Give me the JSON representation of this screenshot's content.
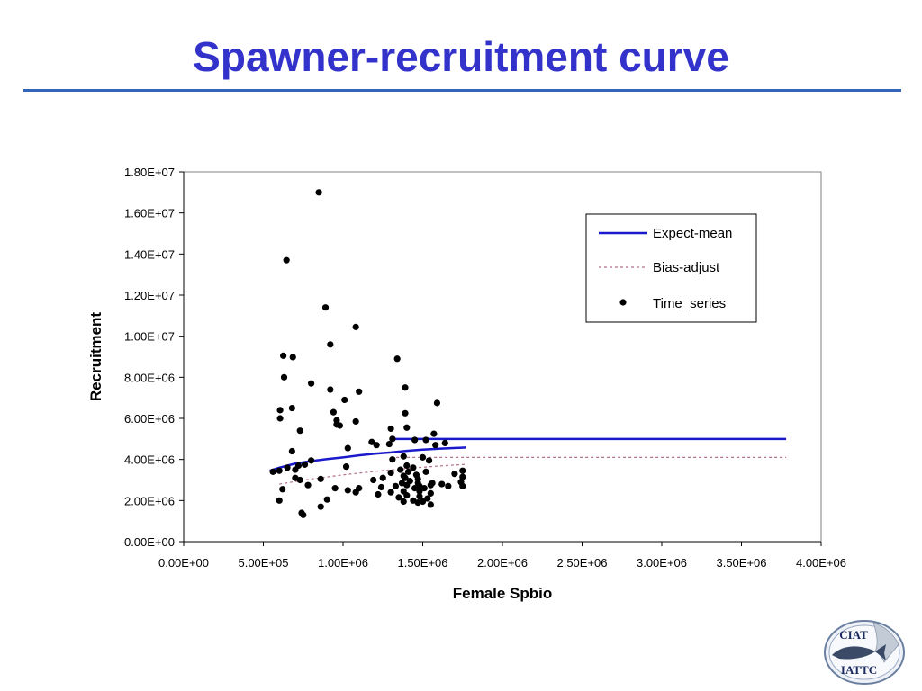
{
  "slide": {
    "title": "Spawner-recruitment curve"
  },
  "logo": {
    "top_text": "CIAT",
    "bottom_text": "IATTC"
  },
  "colors": {
    "title": "#3333cc",
    "rule": "#3366bb",
    "expect_mean": "#1a1acc",
    "bias_adjust": "#b07090",
    "points": "#000000"
  },
  "chart_data": {
    "type": "scatter",
    "xlabel": "Female Spbio",
    "ylabel": "Recruitment",
    "xlim": [
      0,
      4000000
    ],
    "ylim": [
      0,
      18000000
    ],
    "x_ticks": [
      0,
      500000,
      1000000,
      1500000,
      2000000,
      2500000,
      3000000,
      3500000,
      4000000
    ],
    "x_tick_labels": [
      "0.00E+00",
      "5.00E+05",
      "1.00E+06",
      "1.50E+06",
      "2.00E+06",
      "2.50E+06",
      "3.00E+06",
      "3.50E+06",
      "4.00E+06"
    ],
    "y_ticks": [
      0,
      2000000,
      4000000,
      6000000,
      8000000,
      10000000,
      12000000,
      14000000,
      16000000,
      18000000
    ],
    "y_tick_labels": [
      "0.00E+00",
      "2.00E+06",
      "4.00E+06",
      "6.00E+06",
      "8.00E+06",
      "1.00E+07",
      "1.20E+07",
      "1.40E+07",
      "1.60E+07",
      "1.80E+07"
    ],
    "grid": false,
    "legend_position": "top-right",
    "series": [
      {
        "name": "Expect-mean",
        "kind": "line",
        "style": "solid",
        "x": [
          540000,
          600000,
          700000,
          800000,
          900000,
          1000000,
          1100000,
          1200000,
          1300000,
          1350000,
          1400000,
          1500000,
          1600000,
          1770000
        ],
        "y": [
          3450000,
          3600000,
          3800000,
          3920000,
          4020000,
          4100000,
          4200000,
          4280000,
          4340000,
          4380000,
          4420000,
          4480000,
          4520000,
          4580000
        ]
      },
      {
        "name": "Expect-mean",
        "kind": "line",
        "style": "solid",
        "x": [
          1300000,
          3780000
        ],
        "y": [
          5000000,
          5000000
        ]
      },
      {
        "name": "Bias-adjust",
        "kind": "line",
        "style": "dashed",
        "x": [
          600000,
          800000,
          1000000,
          1200000,
          1400000,
          1600000,
          1770000
        ],
        "y": [
          2800000,
          3050000,
          3250000,
          3420000,
          3560000,
          3680000,
          3760000
        ]
      },
      {
        "name": "Bias-adjust",
        "kind": "line",
        "style": "dashed",
        "x": [
          1300000,
          3780000
        ],
        "y": [
          4100000,
          4100000
        ]
      },
      {
        "name": "Time_series",
        "kind": "scatter",
        "points": [
          [
            848000,
            17000000
          ],
          [
            645000,
            13700000
          ],
          [
            890000,
            11400000
          ],
          [
            1080000,
            10450000
          ],
          [
            920000,
            9600000
          ],
          [
            625000,
            9050000
          ],
          [
            685000,
            8980000
          ],
          [
            1340000,
            8900000
          ],
          [
            630000,
            8000000
          ],
          [
            800000,
            7700000
          ],
          [
            1390000,
            7500000
          ],
          [
            920000,
            7400000
          ],
          [
            1100000,
            7300000
          ],
          [
            1010000,
            6900000
          ],
          [
            1590000,
            6750000
          ],
          [
            680000,
            6500000
          ],
          [
            605000,
            6400000
          ],
          [
            940000,
            6300000
          ],
          [
            1390000,
            6250000
          ],
          [
            605000,
            6000000
          ],
          [
            960000,
            5900000
          ],
          [
            1080000,
            5850000
          ],
          [
            960000,
            5700000
          ],
          [
            980000,
            5650000
          ],
          [
            1400000,
            5550000
          ],
          [
            1300000,
            5500000
          ],
          [
            730000,
            5400000
          ],
          [
            1570000,
            5250000
          ],
          [
            1310000,
            5000000
          ],
          [
            1450000,
            4950000
          ],
          [
            1520000,
            4950000
          ],
          [
            1640000,
            4800000
          ],
          [
            1180000,
            4850000
          ],
          [
            1210000,
            4700000
          ],
          [
            1290000,
            4750000
          ],
          [
            1580000,
            4700000
          ],
          [
            1030000,
            4550000
          ],
          [
            680000,
            4400000
          ],
          [
            1380000,
            4150000
          ],
          [
            1500000,
            4100000
          ],
          [
            1310000,
            4000000
          ],
          [
            1540000,
            3950000
          ],
          [
            800000,
            3950000
          ],
          [
            1020000,
            3650000
          ],
          [
            1400000,
            3700000
          ],
          [
            1440000,
            3600000
          ],
          [
            1360000,
            3500000
          ],
          [
            1410000,
            3400000
          ],
          [
            1520000,
            3400000
          ],
          [
            1750000,
            3450000
          ],
          [
            1300000,
            3350000
          ],
          [
            1460000,
            3250000
          ],
          [
            560000,
            3400000
          ],
          [
            600000,
            3450000
          ],
          [
            650000,
            3600000
          ],
          [
            700000,
            3500000
          ],
          [
            720000,
            3700000
          ],
          [
            760000,
            3750000
          ],
          [
            1380000,
            3200000
          ],
          [
            1700000,
            3300000
          ],
          [
            700000,
            3100000
          ],
          [
            730000,
            3000000
          ],
          [
            860000,
            3050000
          ],
          [
            1190000,
            3000000
          ],
          [
            1420000,
            2950000
          ],
          [
            1470000,
            2850000
          ],
          [
            1560000,
            2850000
          ],
          [
            1620000,
            2800000
          ],
          [
            1740000,
            2900000
          ],
          [
            1400000,
            2750000
          ],
          [
            1330000,
            2700000
          ],
          [
            1240000,
            2650000
          ],
          [
            1450000,
            2600000
          ],
          [
            1510000,
            2600000
          ],
          [
            1100000,
            2600000
          ],
          [
            950000,
            2600000
          ],
          [
            1030000,
            2500000
          ],
          [
            1380000,
            2450000
          ],
          [
            1300000,
            2400000
          ],
          [
            1480000,
            2450000
          ],
          [
            1550000,
            2350000
          ],
          [
            1220000,
            2300000
          ],
          [
            1400000,
            2250000
          ],
          [
            1480000,
            2200000
          ],
          [
            1350000,
            2150000
          ],
          [
            1530000,
            2100000
          ],
          [
            1440000,
            2000000
          ],
          [
            1380000,
            1950000
          ],
          [
            1500000,
            1950000
          ],
          [
            1470000,
            1900000
          ],
          [
            1550000,
            1800000
          ],
          [
            600000,
            2000000
          ],
          [
            900000,
            2050000
          ],
          [
            860000,
            1700000
          ],
          [
            740000,
            1400000
          ],
          [
            750000,
            1300000
          ],
          [
            620000,
            2550000
          ],
          [
            780000,
            2750000
          ],
          [
            1750000,
            2700000
          ],
          [
            1660000,
            2700000
          ],
          [
            1750000,
            3150000
          ],
          [
            1550000,
            2750000
          ],
          [
            1480000,
            2700000
          ],
          [
            1370000,
            2850000
          ],
          [
            1080000,
            2400000
          ],
          [
            1250000,
            3100000
          ],
          [
            1470000,
            3050000
          ],
          [
            1390000,
            3100000
          ]
        ]
      }
    ]
  }
}
